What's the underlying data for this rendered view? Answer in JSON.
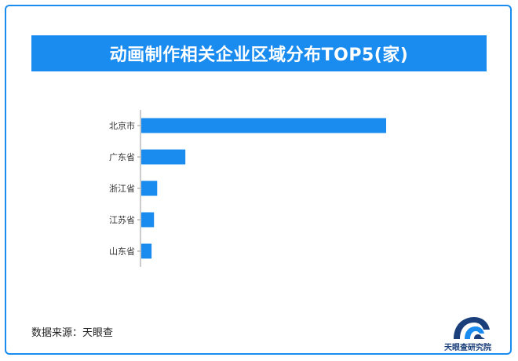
{
  "chart_data": {
    "type": "bar",
    "orientation": "horizontal",
    "title": "动画制作相关企业区域分布TOP5(家)",
    "categories": [
      "北京市",
      "广东省",
      "浙江省",
      "江苏省",
      "山东省"
    ],
    "values": [
      1000,
      180,
      65,
      52,
      42
    ],
    "xlim": [
      0,
      1000
    ],
    "grid": false,
    "legend": "none",
    "bar_color": "#1a8cf0"
  },
  "footer": {
    "source": "数据来源：天眼查"
  },
  "logo": {
    "text": "天眼查研究院",
    "icon": "tianyancha-logo-icon"
  },
  "colors": {
    "accent": "#1a8cf0",
    "logo_dark": "#1a3f7a"
  }
}
